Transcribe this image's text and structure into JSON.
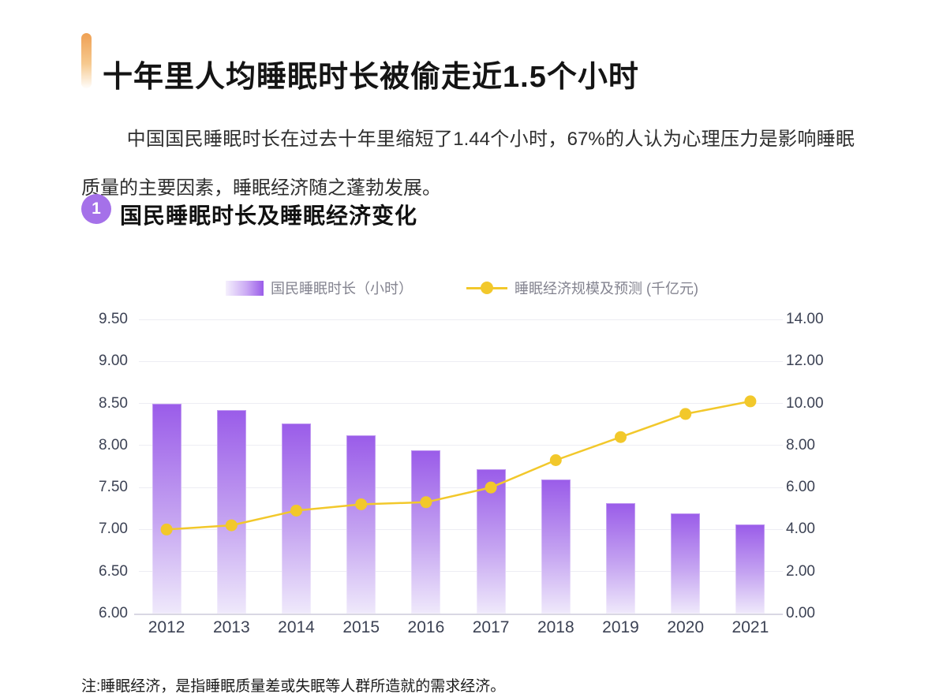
{
  "page": {
    "title": "十年里人均睡眠时长被偷走近1.5个小时",
    "intro": "中国国民睡眠时长在过去十年里缩短了1.44个小时，67%的人认为心理压力是影响睡眠质量的主要因素，睡眠经济随之蓬勃发展。",
    "section": {
      "number": "1",
      "title": "国民睡眠时长及睡眠经济变化"
    },
    "footnote": "注:睡眠经济，是指睡眠质量差或失眠等人群所造就的需求经济。"
  },
  "chart_data": {
    "type": "combo-bar-line",
    "categories": [
      "2012",
      "2013",
      "2014",
      "2015",
      "2016",
      "2017",
      "2018",
      "2019",
      "2020",
      "2021"
    ],
    "series": [
      {
        "name": "国民睡眠时长（小时）",
        "type": "bar",
        "axis": "left",
        "values": [
          8.5,
          8.42,
          8.26,
          8.12,
          7.94,
          7.72,
          7.6,
          7.31,
          7.19,
          7.06
        ]
      },
      {
        "name": "睡眠经济规模及预测 (千亿元)",
        "type": "line",
        "axis": "right",
        "values": [
          4.0,
          4.2,
          4.9,
          5.2,
          5.3,
          6.0,
          7.3,
          8.4,
          9.5,
          10.1
        ]
      }
    ],
    "left_axis": {
      "min": 6,
      "max": 9.5,
      "step": 0.5,
      "ticks": [
        "9.50",
        "9.00",
        "8.50",
        "8.00",
        "7.50",
        "7.00",
        "6.50",
        "6.00"
      ]
    },
    "right_axis": {
      "min": 0,
      "max": 14,
      "step": 2,
      "ticks": [
        "14.00",
        "12.00",
        "10.00",
        "8.00",
        "6.00",
        "4.00",
        "2.00",
        "0.00"
      ]
    },
    "legend_position": "top",
    "grid": "horizontal",
    "colors": {
      "bar_top": "#9a5ce9",
      "bar_bottom": "#efe9fb",
      "line": "#f2c82b",
      "accent_top": "#efa053",
      "badge": "#a571e9"
    }
  }
}
